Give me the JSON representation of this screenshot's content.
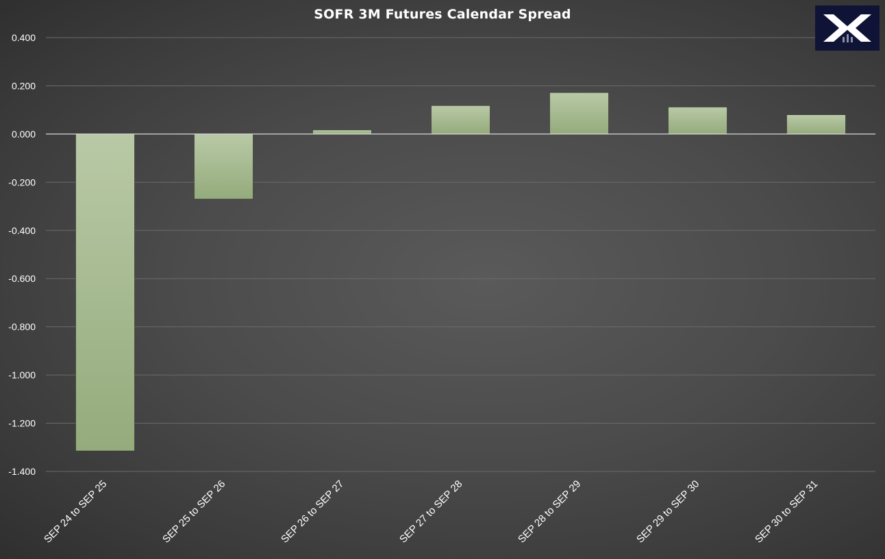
{
  "chart_data": {
    "type": "bar",
    "title": "SOFR 3M Futures Calendar Spread",
    "xlabel": "",
    "ylabel": "",
    "categories": [
      "SEP 24 to SEP 25",
      "SEP 25 to SEP 26",
      "SEP 26 to SEP 27",
      "SEP 27 to SEP 28",
      "SEP 28 to SEP 29",
      "SEP 29 to SEP 30",
      "SEP 30 to SEP 31"
    ],
    "values": [
      -1.315,
      -0.27,
      0.017,
      0.118,
      0.172,
      0.112,
      0.08
    ],
    "ylim": [
      -1.4,
      0.4
    ],
    "yticks": [
      "0.400",
      "0.200",
      "0.000",
      "-0.200",
      "-0.400",
      "-0.600",
      "-0.800",
      "-1.000",
      "-1.200",
      "-1.400"
    ],
    "ytick_values": [
      0.4,
      0.2,
      0,
      -0.2,
      -0.4,
      -0.6,
      -0.8,
      -1.0,
      -1.2,
      -1.4
    ],
    "grid": true,
    "legend": "none",
    "colors": {
      "bar_top": "#b9c9a6",
      "bar_bottom": "#94ab7c",
      "grid": "#6a6a6a",
      "axis_text": "#ffffff",
      "zero_line": "#d9d9d9"
    }
  },
  "logo": {
    "icon": "x-logo-icon",
    "background": "#0f1436"
  }
}
